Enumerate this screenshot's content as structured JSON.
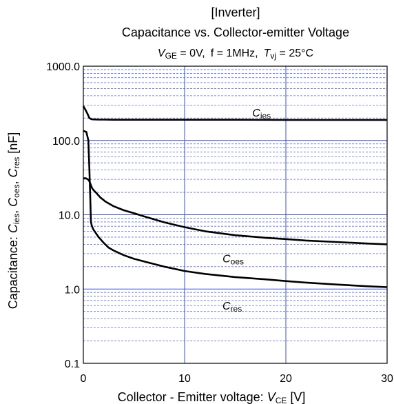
{
  "chart_data": {
    "type": "line",
    "title_line1": "[Inverter]",
    "title_line2": "Capacitance vs. Collector-emitter Voltage",
    "conditions": {
      "vge_sym": "V",
      "vge_sub": "GE",
      "vge_val": " = 0V,",
      "freq": "f = 1MHz,",
      "tvj_sym": "T",
      "tvj_sub": "vj",
      "tvj_val": " = 25°C"
    },
    "xlabel": {
      "prefix": "Collector - Emitter voltage: ",
      "sym": "V",
      "sub": "CE",
      "suffix": " [V]"
    },
    "ylabel": {
      "prefix": "Capacitance: ",
      "c1": "C",
      "s1": "ies",
      "sep1": ", ",
      "c2": "C",
      "s2": "oes",
      "sep2": ", ",
      "c3": "C",
      "s3": "res",
      "suffix": " [nF]"
    },
    "xlim": [
      0,
      30
    ],
    "ylim": [
      0.1,
      1000
    ],
    "yscale": "log",
    "grid": true,
    "x_ticks": [
      "0",
      "10",
      "20",
      "30"
    ],
    "y_ticks": [
      "0.1",
      "1.0",
      "10.0",
      "100.0",
      "1000.0"
    ],
    "series": [
      {
        "name": "Cies",
        "label_sym": "C",
        "label_sub": "ies",
        "x": [
          0,
          0.2,
          0.4,
          0.6,
          0.8,
          1.0,
          1.5,
          2,
          3,
          5,
          10,
          15,
          20,
          25,
          30
        ],
        "y": [
          290,
          260,
          230,
          200,
          193,
          192,
          191,
          191,
          190,
          190,
          190,
          190,
          189,
          189,
          189
        ]
      },
      {
        "name": "Coes",
        "label_sym": "C",
        "label_sub": "oes",
        "x": [
          0,
          0.25,
          0.45,
          0.55,
          0.65,
          0.75,
          0.85,
          1.0,
          1.3,
          1.7,
          2.2,
          3,
          4,
          5,
          6,
          8,
          10,
          12,
          15,
          18,
          20,
          22,
          25,
          28,
          30
        ],
        "y": [
          31,
          31,
          30,
          29,
          27,
          25,
          23,
          21.5,
          19.5,
          17,
          15,
          13,
          11.5,
          10.5,
          9.5,
          7.9,
          6.8,
          6.0,
          5.3,
          4.9,
          4.7,
          4.5,
          4.3,
          4.1,
          4.0
        ],
        "label_x": 14.8,
        "label_y": 2.6
      },
      {
        "name": "Cres",
        "label_sym": "C",
        "label_sub": "res",
        "x": [
          0,
          0.3,
          0.5,
          0.6,
          0.7,
          0.75,
          0.85,
          1.0,
          1.5,
          2,
          2.5,
          3,
          4,
          5,
          6,
          8,
          10,
          12,
          15,
          18,
          20,
          22,
          25,
          28,
          30
        ],
        "y": [
          135,
          130,
          100,
          40,
          14,
          8,
          7,
          6.3,
          5.0,
          4.2,
          3.6,
          3.3,
          2.85,
          2.55,
          2.35,
          2.0,
          1.75,
          1.6,
          1.45,
          1.35,
          1.28,
          1.22,
          1.15,
          1.09,
          1.06
        ],
        "label_x": 14.7,
        "label_y": 0.6
      }
    ],
    "label_ies_x": 17.6,
    "label_ies_y": 240
  }
}
